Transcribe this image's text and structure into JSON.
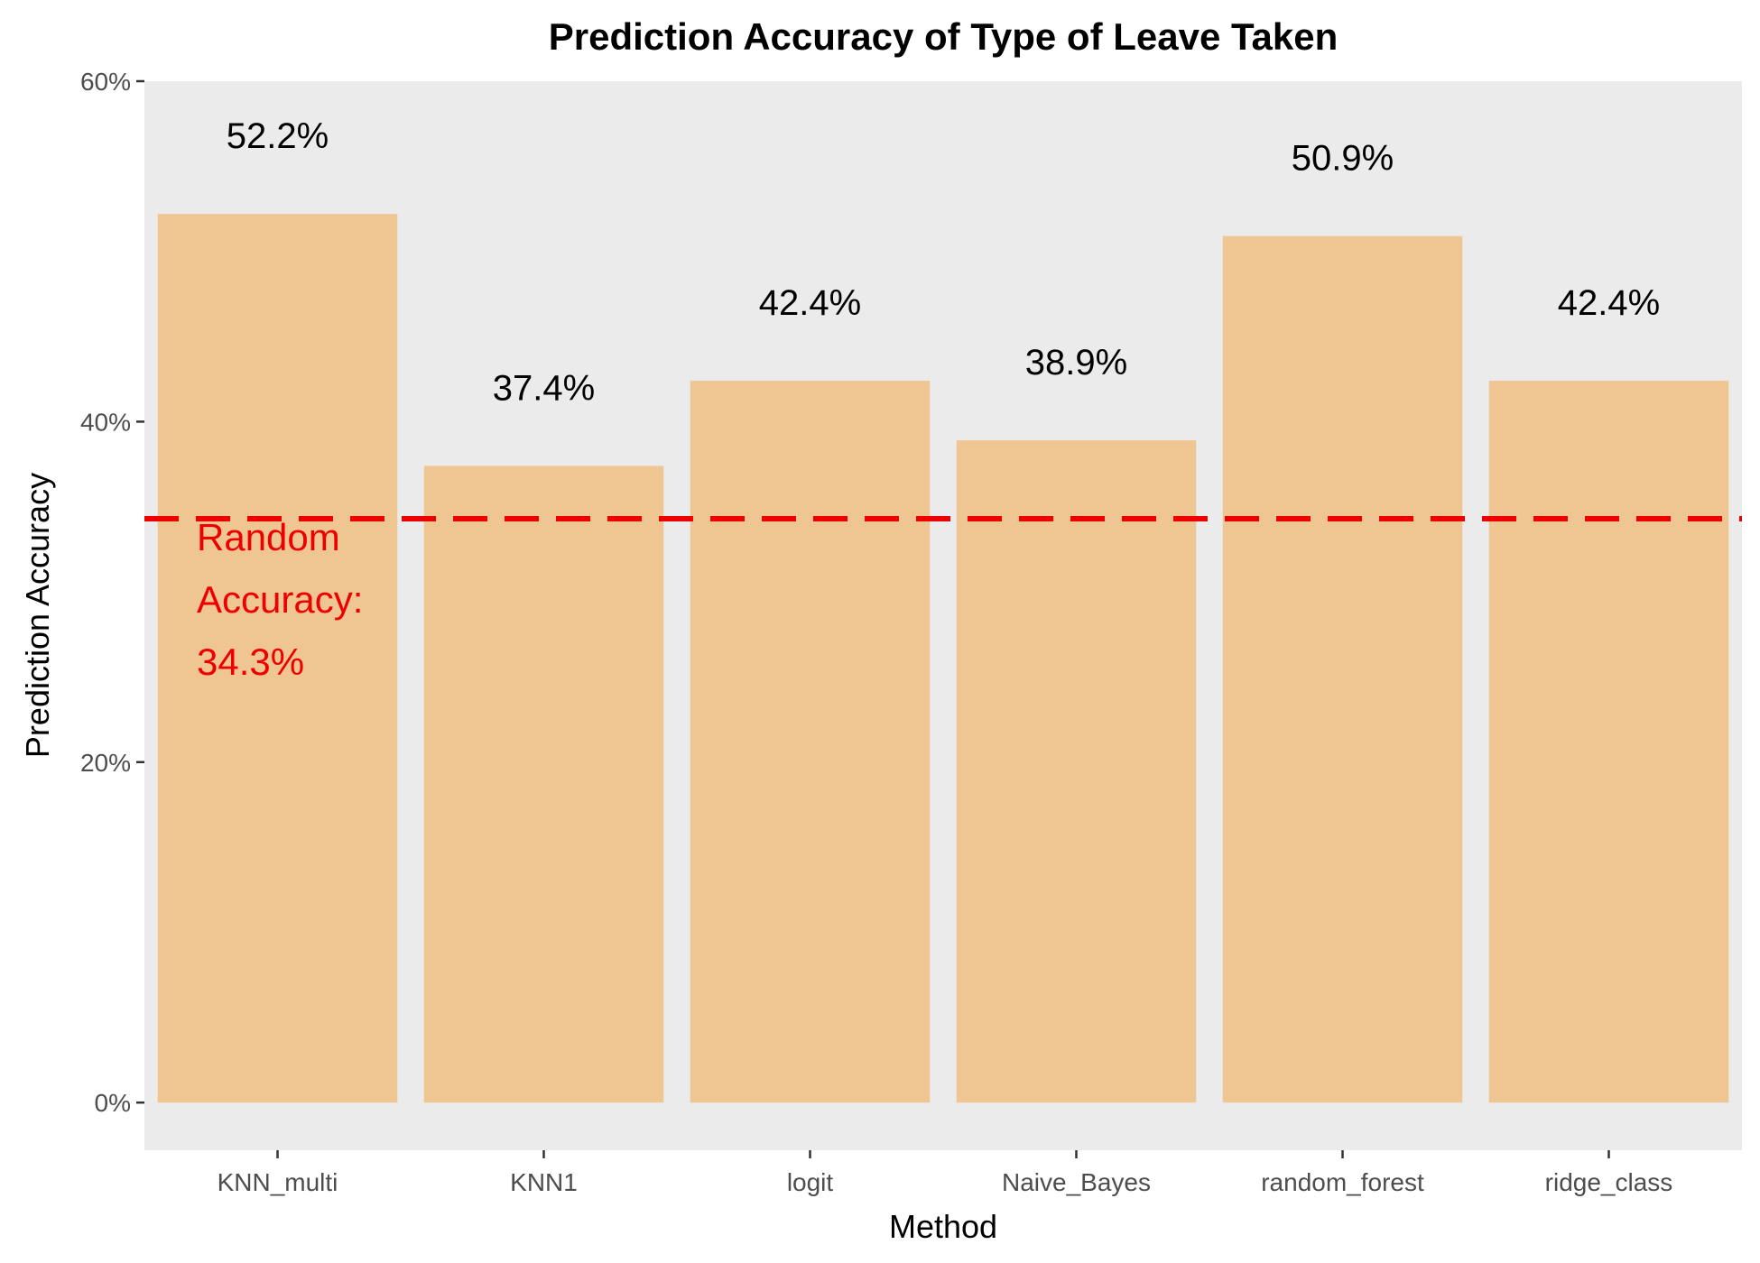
{
  "chart_data": {
    "type": "bar",
    "title": "Prediction Accuracy of Type of Leave Taken",
    "xlabel": "Method",
    "ylabel": "Prediction Accuracy",
    "categories": [
      "KNN_multi",
      "KNN1",
      "logit",
      "Naive_Bayes",
      "random_forest",
      "ridge_class"
    ],
    "values": [
      52.2,
      37.4,
      42.4,
      38.9,
      50.9,
      42.4
    ],
    "value_labels": [
      "52.2%",
      "37.4%",
      "42.4%",
      "38.9%",
      "50.9%",
      "42.4%"
    ],
    "ylim": [
      -2.8,
      60
    ],
    "yticks": [
      0,
      20,
      40,
      60
    ],
    "ytick_labels": [
      "0%",
      "20%",
      "40%",
      "60%"
    ],
    "reference_line": {
      "value": 34.3,
      "style": "dashed",
      "label_lines": [
        "Random",
        "Accuracy:",
        "34.3%"
      ]
    },
    "colors": {
      "bar": "#EFC591",
      "panel": "#EBEBEB",
      "reference": "#EE0000"
    },
    "grid": false,
    "legend": "none"
  }
}
